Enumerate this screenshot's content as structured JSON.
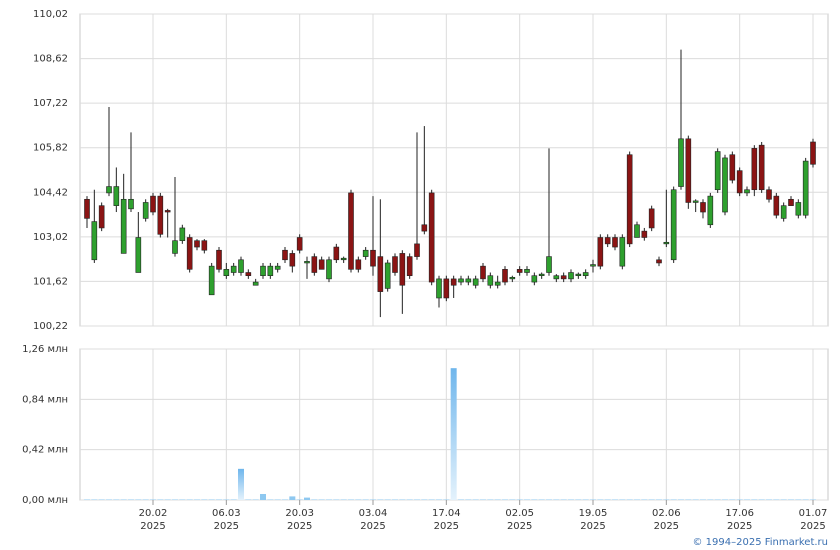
{
  "chart_data": {
    "type": "candlestick",
    "copyright": "© 1994–2025 Finmarket.ru",
    "categories": [
      null,
      null,
      null,
      null,
      null,
      null,
      null,
      null,
      null,
      {
        "date": "20.02",
        "year": "2025"
      },
      null,
      null,
      null,
      null,
      null,
      null,
      null,
      null,
      null,
      {
        "date": "06.03",
        "year": "2025"
      },
      null,
      null,
      null,
      null,
      null,
      null,
      null,
      null,
      null,
      {
        "date": "20.03",
        "year": "2025"
      },
      null,
      null,
      null,
      null,
      null,
      null,
      null,
      null,
      null,
      {
        "date": "03.04",
        "year": "2025"
      },
      null,
      null,
      null,
      null,
      null,
      null,
      null,
      null,
      null,
      {
        "date": "17.04",
        "year": "2025"
      },
      null,
      null,
      null,
      null,
      null,
      null,
      null,
      null,
      null,
      {
        "date": "02.05",
        "year": "2025"
      },
      null,
      null,
      null,
      null,
      null,
      null,
      null,
      null,
      null,
      {
        "date": "19.05",
        "year": "2025"
      },
      null,
      null,
      null,
      null,
      null,
      null,
      null,
      null,
      null,
      {
        "date": "02.06",
        "year": "2025"
      },
      null,
      null,
      null,
      null,
      null,
      null,
      null,
      null,
      null,
      {
        "date": "17.06",
        "year": "2025"
      },
      null,
      null,
      null,
      null,
      null,
      null,
      null,
      null,
      null,
      {
        "date": "01.07",
        "year": "2025"
      }
    ],
    "open": [
      104.2,
      102.3,
      104.0,
      104.4,
      104.0,
      102.5,
      103.9,
      101.9,
      103.6,
      104.3,
      104.3,
      103.85,
      102.5,
      102.9,
      103.0,
      102.9,
      102.9,
      101.2,
      102.6,
      101.8,
      101.9,
      101.9,
      101.9,
      101.5,
      101.8,
      101.8,
      102.0,
      102.6,
      102.5,
      103.0,
      102.2,
      102.4,
      102.3,
      101.7,
      102.7,
      102.3,
      104.4,
      102.3,
      102.4,
      102.6,
      102.4,
      101.4,
      102.4,
      102.5,
      102.4,
      102.8,
      103.4,
      104.4,
      101.1,
      101.7,
      101.7,
      101.6,
      101.6,
      101.5,
      102.1,
      101.5,
      101.5,
      102.0,
      101.7,
      102.0,
      101.9,
      101.6,
      101.8,
      101.9,
      101.7,
      101.8,
      101.7,
      101.8,
      101.8,
      102.1,
      103.0,
      103.0,
      103.0,
      102.1,
      105.6,
      103.0,
      103.2,
      103.9,
      102.3,
      102.8,
      102.3,
      104.6,
      106.1,
      104.1,
      104.1,
      103.4,
      104.5,
      103.8,
      105.6,
      105.1,
      104.4,
      105.8,
      105.9,
      104.5,
      104.3,
      103.6,
      104.2,
      103.7,
      103.7,
      106.0
    ],
    "high": [
      104.3,
      104.5,
      104.1,
      107.1,
      105.2,
      105.0,
      106.3,
      103.8,
      104.2,
      104.4,
      104.4,
      103.9,
      104.9,
      103.4,
      103.1,
      102.95,
      102.95,
      102.2,
      102.7,
      102.2,
      102.2,
      102.4,
      102.0,
      101.7,
      102.2,
      102.2,
      102.2,
      102.7,
      102.6,
      103.1,
      102.4,
      102.5,
      102.4,
      102.4,
      102.8,
      102.4,
      104.5,
      102.4,
      102.7,
      104.3,
      104.2,
      102.3,
      102.5,
      102.6,
      102.5,
      106.3,
      106.5,
      104.5,
      101.8,
      101.8,
      101.8,
      101.8,
      101.8,
      101.8,
      102.2,
      101.9,
      101.8,
      102.1,
      101.8,
      102.1,
      102.1,
      101.9,
      101.9,
      105.8,
      101.85,
      101.9,
      102.0,
      101.9,
      102.0,
      102.3,
      103.1,
      103.1,
      103.1,
      103.1,
      105.7,
      103.5,
      103.3,
      104.0,
      102.4,
      104.5,
      104.6,
      108.9,
      106.2,
      104.2,
      104.2,
      104.4,
      105.8,
      105.6,
      105.7,
      105.2,
      104.6,
      105.9,
      106.0,
      104.6,
      104.4,
      104.1,
      104.3,
      104.2,
      105.5,
      106.1
    ],
    "low": [
      103.3,
      102.2,
      103.2,
      104.3,
      103.8,
      102.5,
      103.8,
      101.9,
      103.5,
      103.7,
      103.0,
      103.0,
      102.4,
      102.8,
      101.9,
      102.6,
      102.5,
      101.2,
      101.9,
      101.7,
      101.8,
      101.8,
      101.7,
      101.5,
      101.7,
      101.7,
      101.9,
      102.2,
      101.9,
      102.5,
      101.7,
      101.8,
      102.0,
      101.6,
      102.2,
      102.2,
      101.9,
      101.9,
      102.3,
      101.8,
      100.5,
      101.3,
      101.8,
      100.6,
      101.7,
      102.3,
      103.1,
      101.5,
      100.8,
      101.0,
      101.1,
      101.5,
      101.5,
      101.4,
      101.6,
      101.4,
      101.4,
      101.5,
      101.6,
      101.8,
      101.8,
      101.5,
      101.7,
      101.8,
      101.6,
      101.6,
      101.6,
      101.7,
      101.7,
      101.9,
      102.0,
      102.7,
      102.6,
      102.0,
      102.7,
      103.0,
      102.9,
      103.2,
      102.1,
      102.7,
      102.2,
      104.5,
      103.9,
      103.8,
      103.6,
      103.3,
      104.4,
      103.7,
      104.7,
      104.3,
      104.3,
      104.3,
      104.4,
      104.1,
      103.6,
      103.5,
      104.0,
      103.6,
      103.6,
      105.2
    ],
    "close": [
      103.6,
      103.5,
      103.3,
      104.6,
      104.6,
      104.2,
      104.2,
      103.0,
      104.1,
      103.8,
      103.1,
      103.8,
      102.9,
      103.3,
      102.0,
      102.7,
      102.6,
      102.1,
      102.0,
      102.0,
      102.1,
      102.3,
      101.8,
      101.6,
      102.1,
      102.1,
      102.1,
      102.3,
      102.1,
      102.6,
      102.25,
      101.9,
      102.0,
      102.3,
      102.3,
      102.35,
      102.0,
      102.0,
      102.6,
      102.1,
      101.3,
      102.2,
      101.9,
      101.5,
      101.8,
      102.4,
      103.2,
      101.6,
      101.7,
      101.1,
      101.5,
      101.7,
      101.7,
      101.7,
      101.7,
      101.8,
      101.6,
      101.6,
      101.75,
      101.9,
      102.0,
      101.8,
      101.85,
      102.4,
      101.8,
      101.7,
      101.9,
      101.85,
      101.9,
      102.15,
      102.1,
      102.8,
      102.7,
      103.0,
      102.8,
      103.4,
      103.0,
      103.3,
      102.2,
      102.85,
      104.5,
      106.1,
      104.1,
      104.15,
      103.8,
      104.3,
      105.7,
      105.5,
      104.8,
      104.4,
      104.5,
      104.5,
      104.5,
      104.2,
      103.7,
      104.0,
      104.0,
      104.1,
      105.4,
      105.3
    ],
    "up_color": "#2ea02e",
    "down_color": "#8b1414",
    "ylim": [
      100.22,
      110.02
    ],
    "yticks": [
      {
        "value": 100.22,
        "label": "100,22"
      },
      {
        "value": 101.62,
        "label": "101,62"
      },
      {
        "value": 103.02,
        "label": "103,02"
      },
      {
        "value": 104.42,
        "label": "104,42"
      },
      {
        "value": 105.82,
        "label": "105,82"
      },
      {
        "value": 107.22,
        "label": "107,22"
      },
      {
        "value": 108.62,
        "label": "108,62"
      },
      {
        "value": 110.02,
        "label": "110,02"
      }
    ],
    "volume": [
      0.004,
      0.004,
      0.004,
      0.004,
      0.004,
      0.004,
      0.004,
      0.004,
      0.004,
      0.004,
      0.004,
      0.004,
      0.004,
      0.004,
      0.004,
      0.004,
      0.004,
      0.004,
      0.004,
      0.004,
      0.004,
      0.26,
      0.004,
      0.004,
      0.05,
      0.004,
      0.004,
      0.004,
      0.03,
      0.004,
      0.02,
      0.004,
      0.004,
      0.004,
      0.004,
      0.004,
      0.004,
      0.004,
      0.004,
      0.004,
      0.004,
      0.004,
      0.004,
      0.004,
      0.004,
      0.004,
      0.004,
      0.004,
      0.004,
      0.004,
      1.1,
      0.004,
      0.004,
      0.004,
      0.004,
      0.004,
      0.004,
      0.004,
      0.004,
      0.004,
      0.004,
      0.004,
      0.004,
      0.004,
      0.004,
      0.004,
      0.004,
      0.004,
      0.004,
      0.004,
      0.004,
      0.004,
      0.004,
      0.004,
      0.004,
      0.004,
      0.004,
      0.004,
      0.004,
      0.004,
      0.004,
      0.004,
      0.004,
      0.004,
      0.004,
      0.004,
      0.004,
      0.004,
      0.004,
      0.004,
      0.004,
      0.004,
      0.004,
      0.004,
      0.004,
      0.004,
      0.004,
      0.004,
      0.004,
      0.004
    ],
    "volume_color": "#8ec8f0",
    "vlim": [
      0,
      1.26
    ],
    "vticks": [
      {
        "value": 0,
        "label": "0,00 млн"
      },
      {
        "value": 0.42,
        "label": "0,42 млн"
      },
      {
        "value": 0.84,
        "label": "0,84 млн"
      },
      {
        "value": 1.26,
        "label": "1,26 млн"
      }
    ],
    "grid": true
  }
}
